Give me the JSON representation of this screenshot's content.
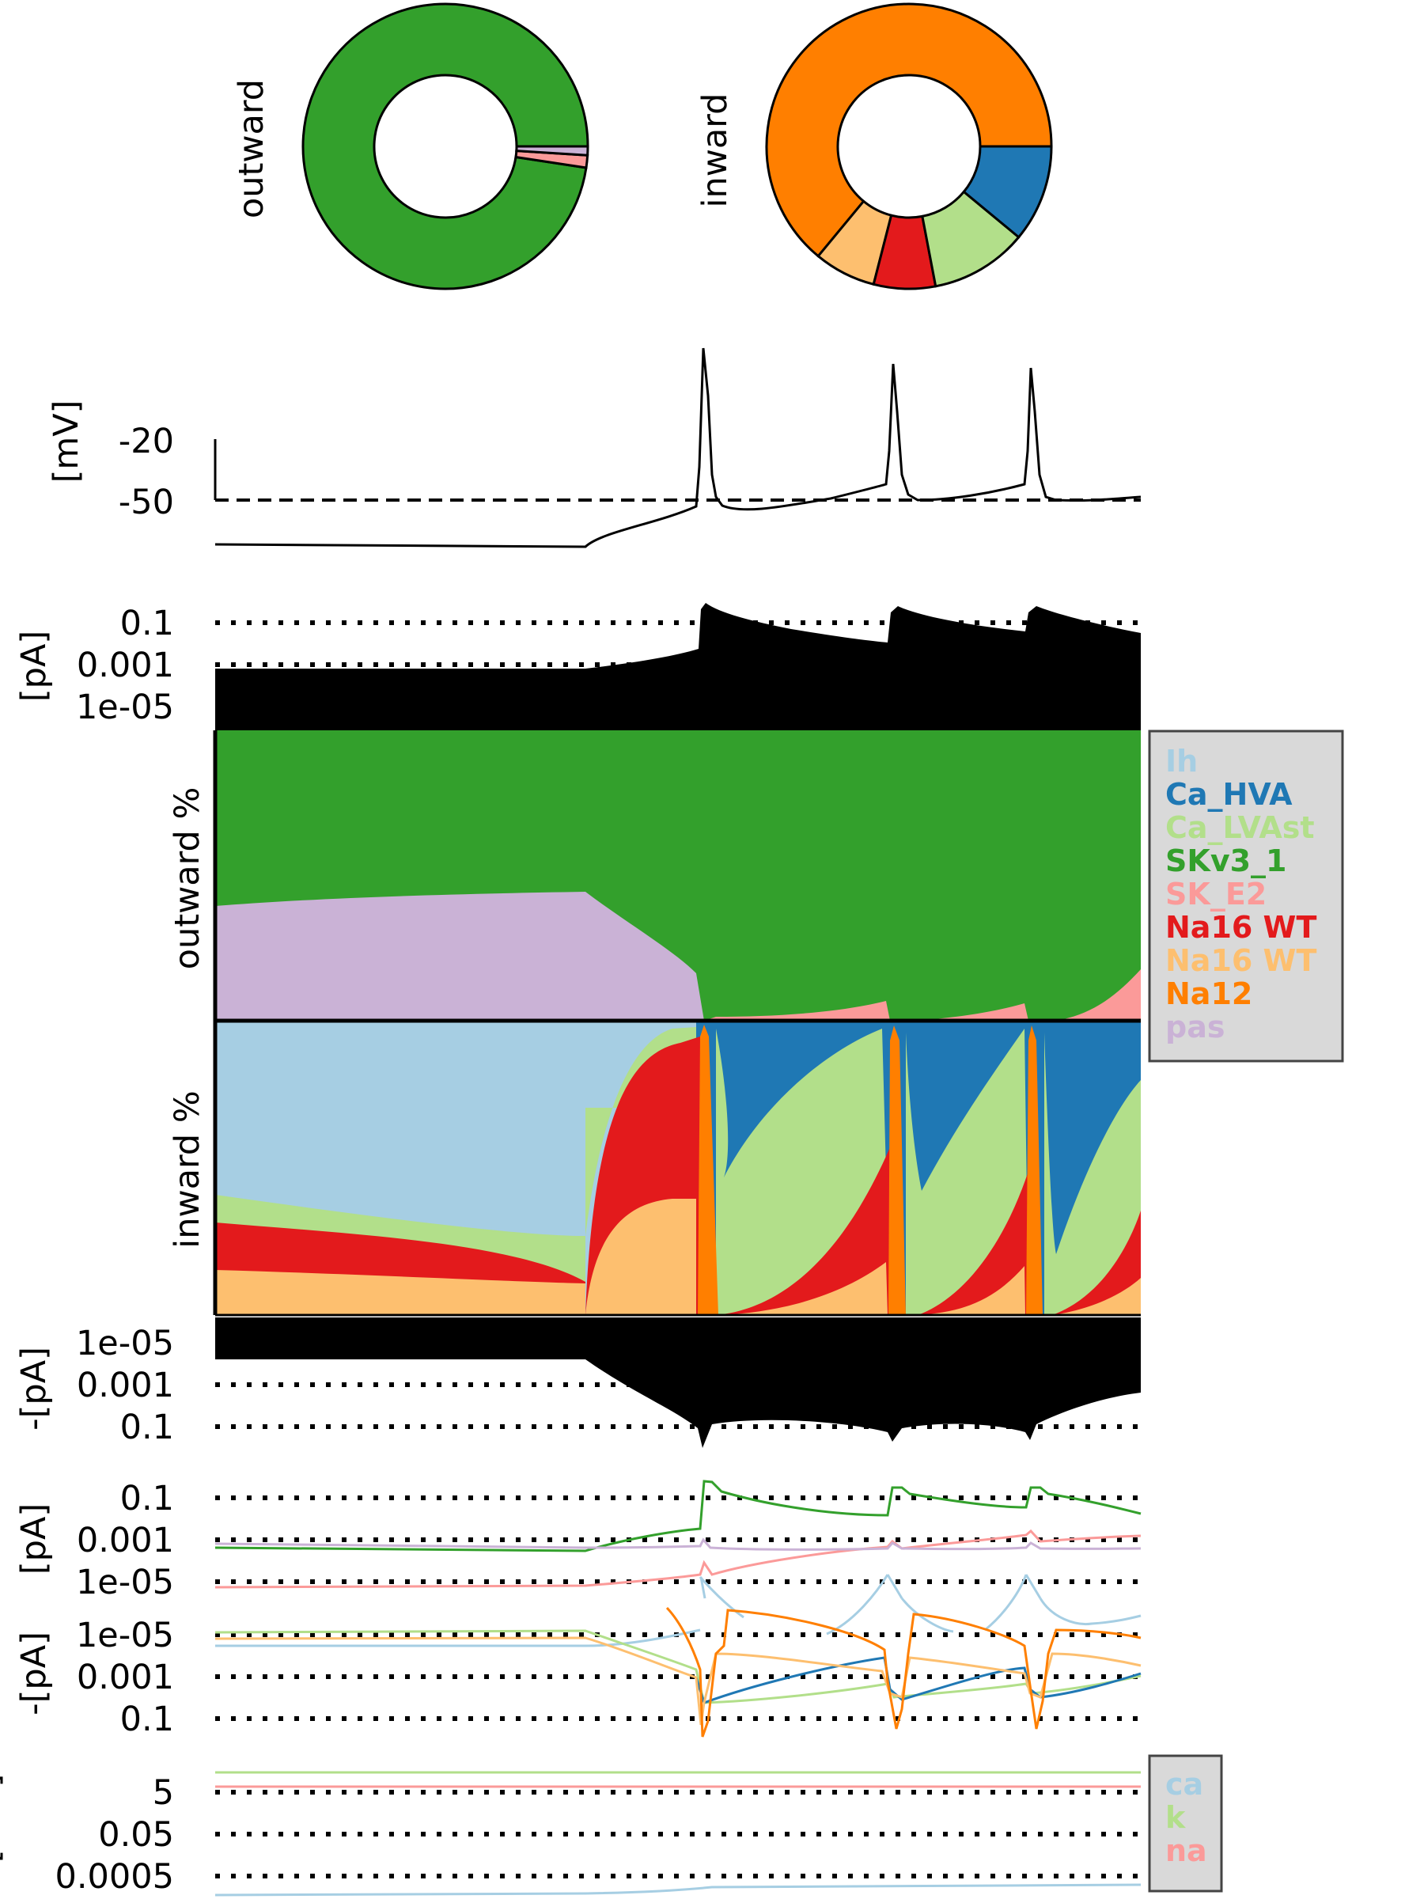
{
  "chart_data": [
    {
      "type": "pie",
      "subtype": "donut",
      "label": "outward",
      "slices": [
        {
          "name": "SKv3_1",
          "value": 97.6,
          "color": "#33a02c"
        },
        {
          "name": "SK_E2",
          "value": 1.4,
          "color": "#fb9a99"
        },
        {
          "name": "pas",
          "value": 1.0,
          "color": "#cab2d6"
        }
      ]
    },
    {
      "type": "pie",
      "subtype": "donut",
      "label": "inward",
      "slices": [
        {
          "name": "Na12",
          "value": 64,
          "color": "#ff7f00"
        },
        {
          "name": "Na16 WT",
          "value": 7,
          "color": "#fdbf6f"
        },
        {
          "name": "Na16 WT",
          "value": 7,
          "color": "#e31a1c"
        },
        {
          "name": "Ca_LVAst",
          "value": 11,
          "color": "#b2df8a"
        },
        {
          "name": "Ca_HVA",
          "value": 11,
          "color": "#1f78b4"
        }
      ]
    },
    {
      "type": "line",
      "ylabel": "[mV]",
      "yticks": [
        "-20",
        "-50"
      ],
      "ytick_values": [
        -20,
        -50
      ],
      "reference_line": -50,
      "spike_peaks_mV": [
        25,
        17,
        17
      ],
      "resting_mV": -72
    },
    {
      "type": "area",
      "ylabel": "[pA]",
      "scale": "log",
      "yticks": [
        "0.1",
        "0.001",
        "1e-05"
      ],
      "ytick_values": [
        0.1,
        0.001,
        1e-05
      ],
      "series": [
        {
          "name": "total outward",
          "color": "#000000"
        }
      ]
    },
    {
      "type": "area",
      "stacked": true,
      "normalized": true,
      "ylabel": "outward %",
      "series": [
        {
          "name": "pas",
          "color": "#cab2d6"
        },
        {
          "name": "SK_E2",
          "color": "#fb9a99"
        },
        {
          "name": "SKv3_1",
          "color": "#33a02c"
        }
      ]
    },
    {
      "type": "area",
      "stacked": true,
      "normalized": true,
      "ylabel": "inward %",
      "series": [
        {
          "name": "Na16 WT",
          "color": "#fdbf6f"
        },
        {
          "name": "Na16 WT",
          "color": "#e31a1c"
        },
        {
          "name": "Ca_LVAst",
          "color": "#b2df8a"
        },
        {
          "name": "Ih",
          "color": "#a6cee3"
        },
        {
          "name": "Ca_HVA",
          "color": "#1f78b4"
        },
        {
          "name": "Na12",
          "color": "#ff7f00"
        }
      ]
    },
    {
      "type": "area",
      "ylabel": "-[pA]",
      "scale": "log",
      "yticks": [
        "1e-05",
        "0.001",
        "0.1"
      ],
      "ytick_values": [
        1e-05,
        0.001,
        0.1
      ],
      "series": [
        {
          "name": "total inward",
          "color": "#000000"
        }
      ]
    },
    {
      "type": "line",
      "ylabel": "[pA]",
      "scale": "log",
      "yticks": [
        "0.1",
        "0.001",
        "1e-05"
      ],
      "ytick_values": [
        0.1,
        0.001,
        1e-05
      ],
      "series": [
        {
          "name": "SKv3_1",
          "color": "#33a02c"
        },
        {
          "name": "SK_E2",
          "color": "#fb9a99"
        },
        {
          "name": "pas",
          "color": "#cab2d6"
        },
        {
          "name": "Ih",
          "color": "#a6cee3"
        }
      ]
    },
    {
      "type": "line",
      "ylabel": "-[pA]",
      "scale": "log",
      "yticks": [
        "1e-05",
        "0.001",
        "0.1"
      ],
      "ytick_values": [
        1e-05,
        0.001,
        0.1
      ],
      "series": [
        {
          "name": "Na12",
          "color": "#ff7f00"
        },
        {
          "name": "Na16 WT",
          "color": "#fdbf6f"
        },
        {
          "name": "Ca_HVA",
          "color": "#1f78b4"
        },
        {
          "name": "Ca_LVAst",
          "color": "#b2df8a"
        },
        {
          "name": "Ih",
          "color": "#a6cee3"
        }
      ]
    },
    {
      "type": "line",
      "ylabel": "[mM]",
      "scale": "log",
      "yticks": [
        "5",
        "0.05",
        "0.0005"
      ],
      "ytick_values": [
        5,
        0.05,
        0.0005
      ],
      "series": [
        {
          "name": "ca",
          "color": "#a6cee3"
        },
        {
          "name": "k",
          "color": "#b2df8a"
        },
        {
          "name": "na",
          "color": "#fb9a99"
        }
      ]
    }
  ],
  "legend_currents": [
    {
      "label": "Ih",
      "color": "#a6cee3"
    },
    {
      "label": "Ca_HVA",
      "color": "#1f78b4"
    },
    {
      "label": "Ca_LVAst",
      "color": "#b2df8a"
    },
    {
      "label": "SKv3_1",
      "color": "#33a02c"
    },
    {
      "label": "SK_E2",
      "color": "#fb9a99"
    },
    {
      "label": "Na16 WT",
      "color": "#e31a1c"
    },
    {
      "label": "Na16 WT",
      "color": "#fdbf6f"
    },
    {
      "label": "Na12",
      "color": "#ff7f00"
    },
    {
      "label": "pas",
      "color": "#cab2d6"
    }
  ],
  "legend_ions": [
    {
      "label": "ca",
      "color": "#a6cee3"
    },
    {
      "label": "k",
      "color": "#b2df8a"
    },
    {
      "label": "na",
      "color": "#fb9a99"
    }
  ]
}
